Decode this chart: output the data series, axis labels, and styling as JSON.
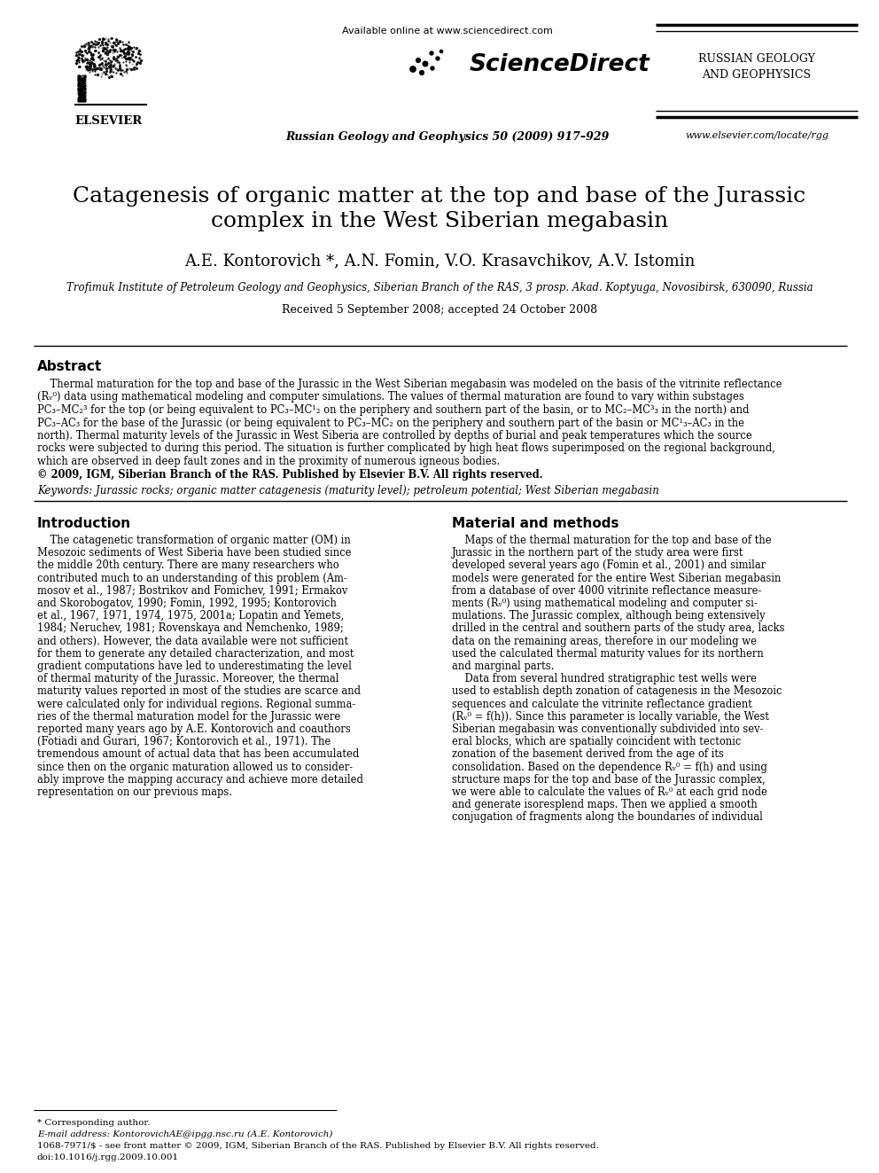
{
  "title_line1": "Catagenesis of organic matter at the top and base of the Jurassic",
  "title_line2": "complex in the West Siberian megabasin",
  "authors": "A.E. Kontorovich *, A.N. Fomin, V.O. Krasavchikov, A.V. Istomin",
  "affiliation": "Trofimuk Institute of Petroleum Geology and Geophysics, Siberian Branch of the RAS, 3 prosp. Akad. Koptyuga, Novosibirsk, 630090, Russia",
  "received": "Received 5 September 2008; accepted 24 October 2008",
  "journal_info": "Russian Geology and Geophysics 50 (2009) 917–929",
  "journal_name_line1": "RUSSIAN GEOLOGY",
  "journal_name_line2": "AND GEOPHYSICS",
  "sciencedirect_url": "Available online at www.sciencedirect.com",
  "sciencedirect_logo": "ScienceDirect",
  "elsevier_url": "www.elsevier.com/locate/rgg",
  "elsevier_text": "ELSEVIER",
  "abstract_title": "Abstract",
  "keywords_text": "Keywords: Jurassic rocks; organic matter catagenesis (maturity level); petroleum potential; West Siberian megabasin",
  "intro_title": "Introduction",
  "material_title": "Material and methods",
  "footnote_star": "* Corresponding author.",
  "footnote_email": "E-mail address: KontorovichAE@ipgg.nsc.ru (A.E. Kontorovich)",
  "footnote_issn": "1068-7971/$ - see front matter © 2009, IGM, Siberian Branch of the RAS. Published by Elsevier B.V. All rights reserved.",
  "footnote_doi": "doi:10.1016/j.rgg.2009.10.001",
  "bg_color": "#ffffff",
  "text_color": "#000000"
}
